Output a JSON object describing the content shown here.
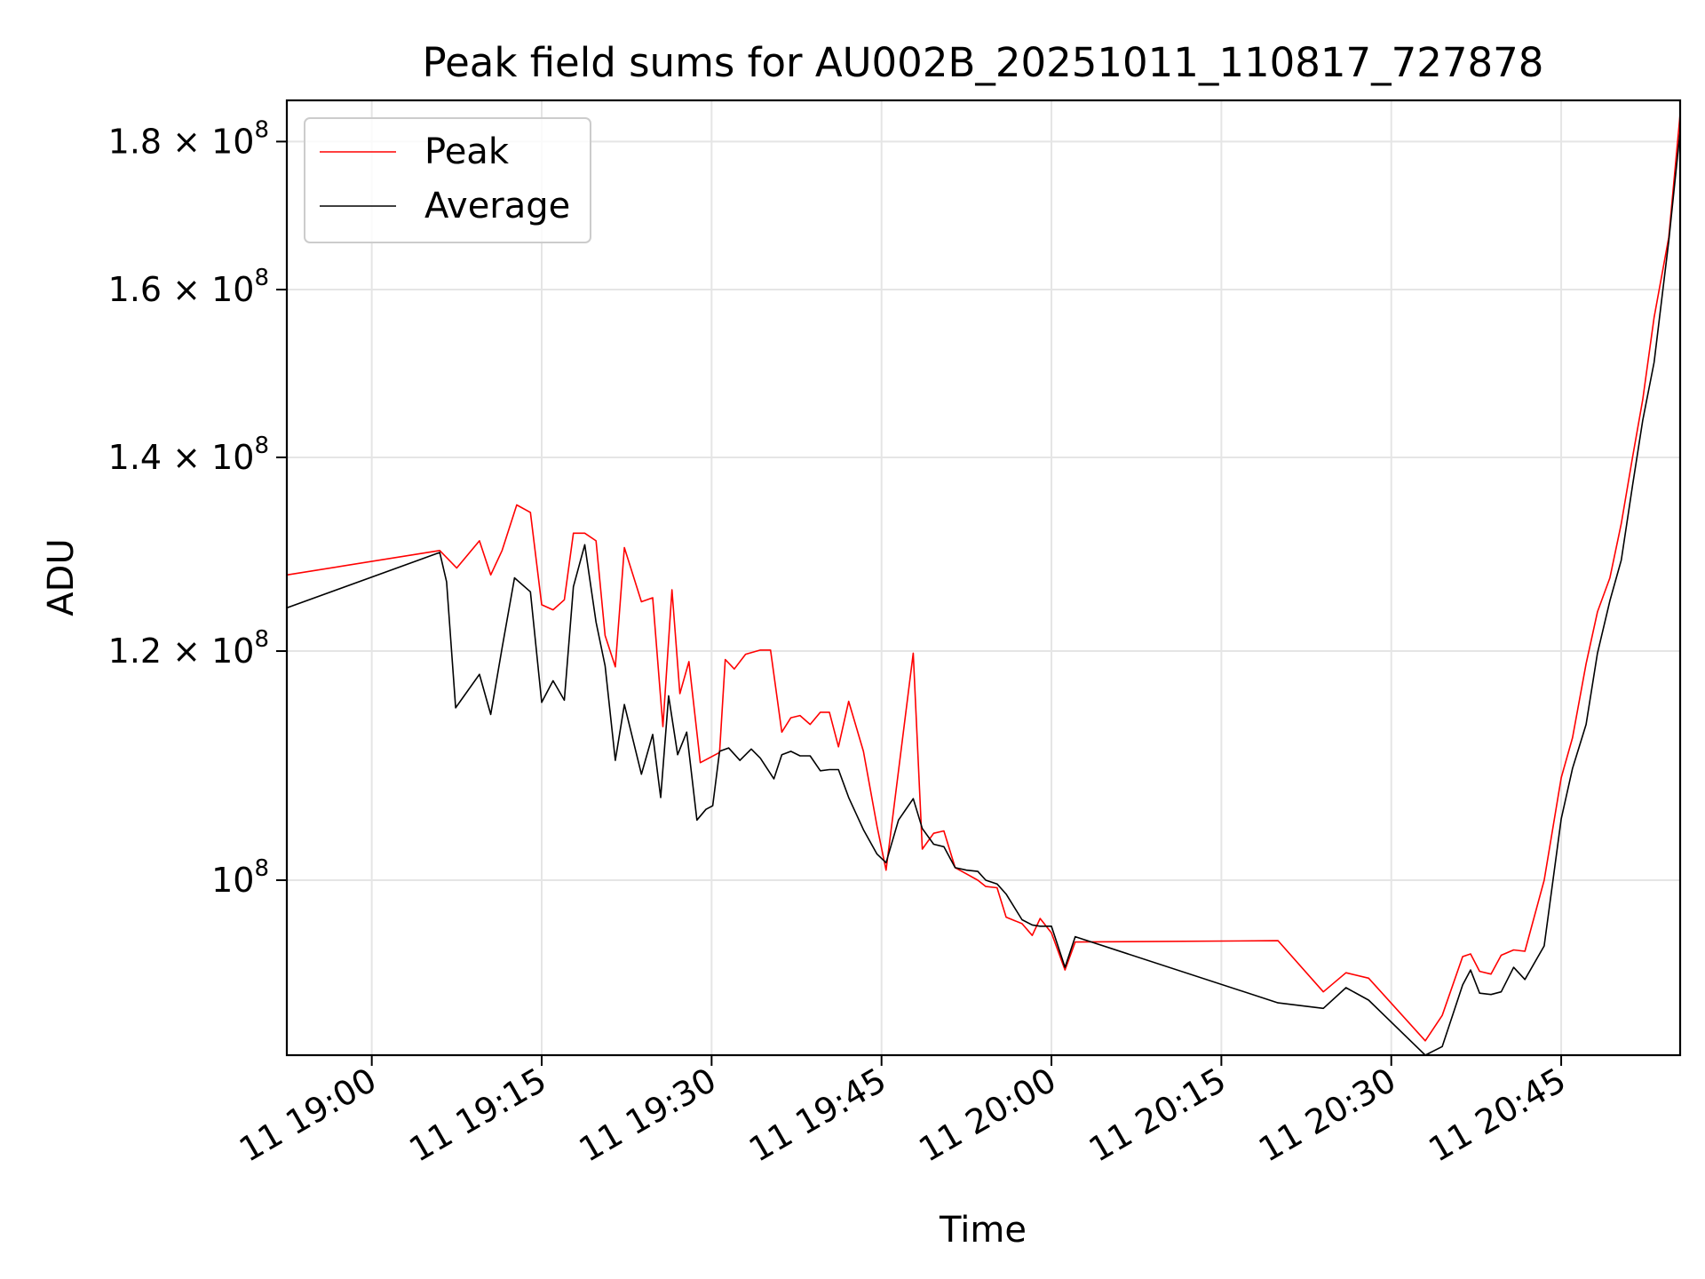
{
  "chart_data": {
    "type": "line",
    "title": "Peak field sums for AU002B_20251011_110817_727878",
    "xlabel": "Time",
    "ylabel": "ADU",
    "yscale": "log",
    "xlim_minutes": [
      -7.5,
      115.5
    ],
    "ylim": [
      87000000,
      186000000
    ],
    "grid": true,
    "legend_position": "top-left",
    "x_ticks": [
      {
        "minutes": 0,
        "label": "11 19:00"
      },
      {
        "minutes": 15,
        "label": "11 19:15"
      },
      {
        "minutes": 30,
        "label": "11 19:30"
      },
      {
        "minutes": 45,
        "label": "11 19:45"
      },
      {
        "minutes": 60,
        "label": "11 20:00"
      },
      {
        "minutes": 75,
        "label": "11 20:15"
      },
      {
        "minutes": 90,
        "label": "11 20:30"
      },
      {
        "minutes": 105,
        "label": "11 20:45"
      }
    ],
    "y_ticks": [
      {
        "value": 100000000,
        "mantissa": "",
        "base": "10",
        "exp": "8"
      },
      {
        "value": 120000000,
        "mantissa": "1.2",
        "base": "10",
        "exp": "8"
      },
      {
        "value": 140000000,
        "mantissa": "1.4",
        "base": "10",
        "exp": "8"
      },
      {
        "value": 160000000,
        "mantissa": "1.6",
        "base": "10",
        "exp": "8"
      },
      {
        "value": 180000000,
        "mantissa": "1.8",
        "base": "10",
        "exp": "8"
      }
    ],
    "series": [
      {
        "name": "Peak",
        "color": "#ff0000",
        "points": [
          [
            -7.5,
            127500000
          ],
          [
            6.0,
            130000000
          ],
          [
            7.5,
            128200000
          ],
          [
            9.5,
            131000000
          ],
          [
            10.5,
            127500000
          ],
          [
            11.5,
            130000000
          ],
          [
            12.8,
            134800000
          ],
          [
            14.0,
            134000000
          ],
          [
            15.0,
            124500000
          ],
          [
            16.0,
            124000000
          ],
          [
            17.0,
            125000000
          ],
          [
            17.8,
            131800000
          ],
          [
            18.8,
            131800000
          ],
          [
            19.8,
            131000000
          ],
          [
            20.6,
            121500000
          ],
          [
            21.5,
            118500000
          ],
          [
            22.3,
            130300000
          ],
          [
            23.8,
            124800000
          ],
          [
            24.8,
            125200000
          ],
          [
            25.7,
            113000000
          ],
          [
            26.5,
            126000000
          ],
          [
            27.2,
            116000000
          ],
          [
            28.0,
            119000000
          ],
          [
            29.0,
            109800000
          ],
          [
            30.7,
            110700000
          ],
          [
            31.2,
            119200000
          ],
          [
            32.0,
            118300000
          ],
          [
            33.0,
            119700000
          ],
          [
            34.3,
            120100000
          ],
          [
            35.2,
            120100000
          ],
          [
            36.2,
            112500000
          ],
          [
            37.0,
            113800000
          ],
          [
            37.8,
            114000000
          ],
          [
            38.7,
            113200000
          ],
          [
            39.6,
            114300000
          ],
          [
            40.4,
            114300000
          ],
          [
            41.2,
            111200000
          ],
          [
            42.1,
            115300000
          ],
          [
            43.4,
            110800000
          ],
          [
            44.6,
            104400000
          ],
          [
            45.4,
            100800000
          ],
          [
            47.8,
            119800000
          ],
          [
            48.6,
            102500000
          ],
          [
            49.6,
            103800000
          ],
          [
            50.5,
            104000000
          ],
          [
            51.5,
            101000000
          ],
          [
            52.5,
            100500000
          ],
          [
            53.5,
            100000000
          ],
          [
            54.2,
            99500000
          ],
          [
            55.2,
            99400000
          ],
          [
            56.0,
            97100000
          ],
          [
            57.4,
            96600000
          ],
          [
            58.3,
            95700000
          ],
          [
            59.0,
            97000000
          ],
          [
            60.0,
            95900000
          ],
          [
            61.2,
            93100000
          ],
          [
            62.1,
            95200000
          ],
          [
            80.0,
            95300000
          ],
          [
            84.0,
            91500000
          ],
          [
            86.0,
            92900000
          ],
          [
            88.0,
            92500000
          ],
          [
            93.0,
            88000000
          ],
          [
            94.5,
            89800000
          ],
          [
            96.3,
            94100000
          ],
          [
            97.0,
            94300000
          ],
          [
            97.8,
            93000000
          ],
          [
            98.8,
            92800000
          ],
          [
            99.7,
            94200000
          ],
          [
            100.8,
            94600000
          ],
          [
            101.8,
            94500000
          ],
          [
            103.5,
            100000000
          ],
          [
            105.0,
            108500000
          ],
          [
            106.0,
            112000000
          ],
          [
            107.2,
            118800000
          ],
          [
            108.2,
            123800000
          ],
          [
            109.3,
            127200000
          ],
          [
            110.3,
            132800000
          ],
          [
            111.3,
            140000000
          ],
          [
            112.2,
            146600000
          ],
          [
            113.2,
            156500000
          ],
          [
            114.5,
            166800000
          ],
          [
            115.5,
            184000000
          ]
        ]
      },
      {
        "name": "Average",
        "color": "#000000",
        "points": [
          [
            -7.5,
            124200000
          ],
          [
            6.0,
            129800000
          ],
          [
            6.6,
            126800000
          ],
          [
            7.4,
            114700000
          ],
          [
            9.5,
            117800000
          ],
          [
            10.5,
            114100000
          ],
          [
            11.5,
            120300000
          ],
          [
            12.6,
            127200000
          ],
          [
            14.0,
            125800000
          ],
          [
            15.0,
            115200000
          ],
          [
            16.0,
            117200000
          ],
          [
            17.0,
            115400000
          ],
          [
            17.8,
            126300000
          ],
          [
            18.8,
            130600000
          ],
          [
            19.8,
            122800000
          ],
          [
            20.6,
            118600000
          ],
          [
            21.5,
            110000000
          ],
          [
            22.3,
            115000000
          ],
          [
            23.8,
            108800000
          ],
          [
            24.8,
            112300000
          ],
          [
            25.5,
            106800000
          ],
          [
            26.2,
            115800000
          ],
          [
            27.0,
            110500000
          ],
          [
            27.8,
            112500000
          ],
          [
            28.7,
            104900000
          ],
          [
            29.5,
            105800000
          ],
          [
            30.1,
            106100000
          ],
          [
            30.7,
            110800000
          ],
          [
            31.5,
            111100000
          ],
          [
            32.5,
            110000000
          ],
          [
            33.5,
            111000000
          ],
          [
            34.3,
            110200000
          ],
          [
            35.5,
            108400000
          ],
          [
            36.2,
            110500000
          ],
          [
            37.0,
            110800000
          ],
          [
            37.8,
            110400000
          ],
          [
            38.7,
            110400000
          ],
          [
            39.6,
            109100000
          ],
          [
            40.4,
            109200000
          ],
          [
            41.2,
            109200000
          ],
          [
            42.1,
            106800000
          ],
          [
            43.4,
            104100000
          ],
          [
            44.6,
            102100000
          ],
          [
            45.4,
            101400000
          ],
          [
            46.5,
            104900000
          ],
          [
            47.8,
            106700000
          ],
          [
            48.6,
            104200000
          ],
          [
            49.6,
            102900000
          ],
          [
            50.5,
            102700000
          ],
          [
            51.5,
            101000000
          ],
          [
            52.5,
            100800000
          ],
          [
            53.5,
            100700000
          ],
          [
            54.2,
            100000000
          ],
          [
            55.2,
            99700000
          ],
          [
            56.0,
            98900000
          ],
          [
            57.4,
            96900000
          ],
          [
            58.3,
            96500000
          ],
          [
            59.0,
            96400000
          ],
          [
            60.0,
            96400000
          ],
          [
            61.2,
            93300000
          ],
          [
            62.1,
            95600000
          ],
          [
            80.0,
            90700000
          ],
          [
            84.0,
            90300000
          ],
          [
            86.0,
            91800000
          ],
          [
            88.0,
            90900000
          ],
          [
            93.0,
            87000000
          ],
          [
            94.5,
            87600000
          ],
          [
            96.3,
            92000000
          ],
          [
            97.0,
            93100000
          ],
          [
            97.8,
            91400000
          ],
          [
            98.8,
            91300000
          ],
          [
            99.7,
            91500000
          ],
          [
            100.8,
            93300000
          ],
          [
            101.8,
            92400000
          ],
          [
            103.5,
            94900000
          ],
          [
            105.0,
            105000000
          ],
          [
            106.0,
            109300000
          ],
          [
            107.2,
            113200000
          ],
          [
            108.2,
            119800000
          ],
          [
            109.3,
            124900000
          ],
          [
            110.3,
            129000000
          ],
          [
            111.3,
            136900000
          ],
          [
            112.2,
            144200000
          ],
          [
            113.2,
            151000000
          ],
          [
            114.5,
            166300000
          ],
          [
            115.5,
            181500000
          ]
        ]
      }
    ]
  }
}
